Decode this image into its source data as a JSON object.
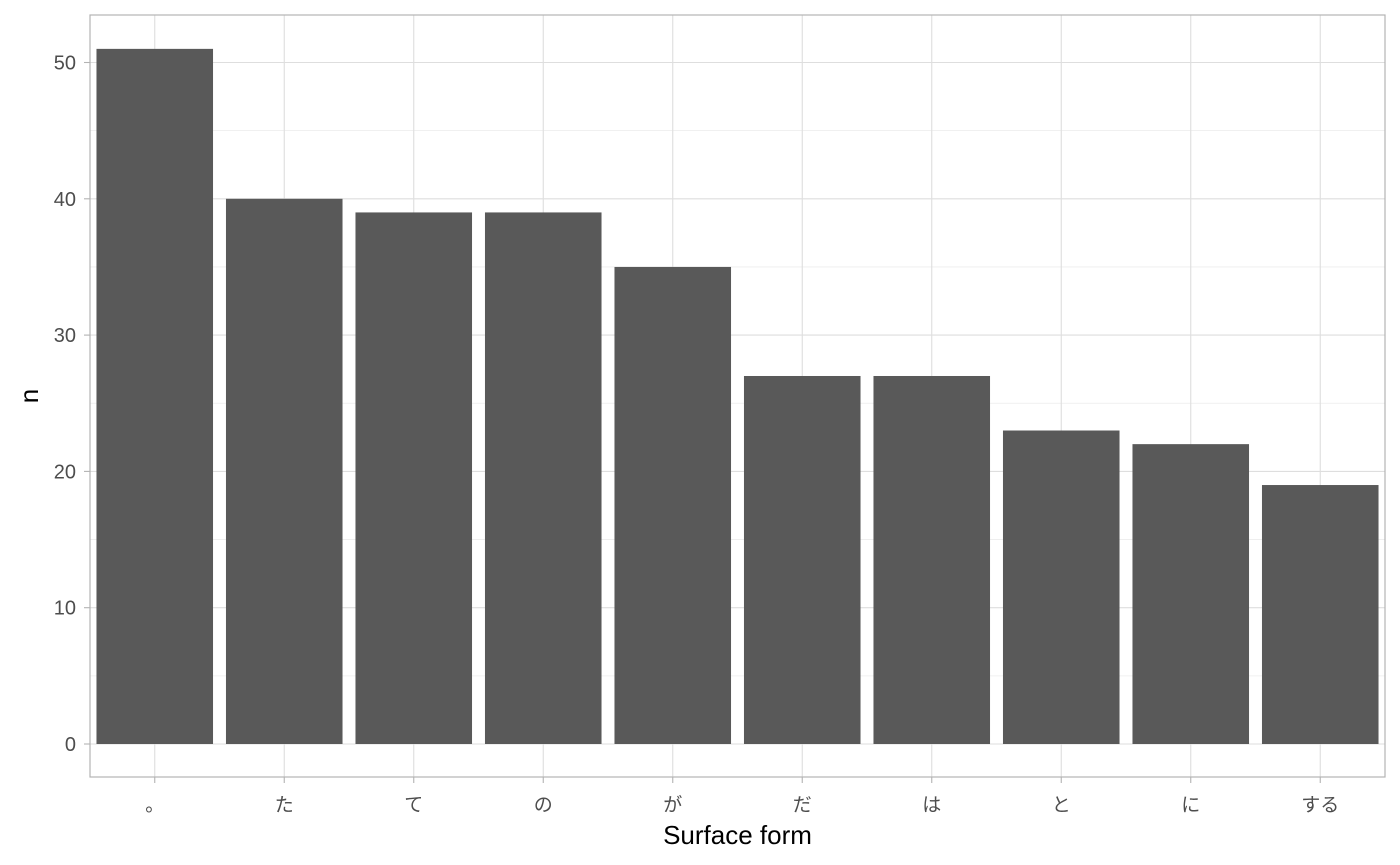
{
  "chart_data": {
    "type": "bar",
    "title": "",
    "xlabel": "Surface form",
    "ylabel": "n",
    "categories": [
      "。",
      "た",
      "て",
      "の",
      "が",
      "だ",
      "は",
      "と",
      "に",
      "する"
    ],
    "values": [
      51,
      40,
      39,
      39,
      35,
      27,
      27,
      23,
      22,
      19
    ],
    "ylim": [
      0,
      53.5
    ],
    "yticks": [
      0,
      10,
      20,
      30,
      40,
      50
    ],
    "grid": true,
    "bar_color": "#595959",
    "grid_color": "#dedede",
    "border_color": "#b3b3b3"
  }
}
